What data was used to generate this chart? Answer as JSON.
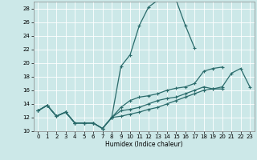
{
  "xlabel": "Humidex (Indice chaleur)",
  "xlim": [
    -0.5,
    23.5
  ],
  "ylim": [
    10,
    29
  ],
  "yticks": [
    10,
    12,
    14,
    16,
    18,
    20,
    22,
    24,
    26,
    28
  ],
  "xticks": [
    0,
    1,
    2,
    3,
    4,
    5,
    6,
    7,
    8,
    9,
    10,
    11,
    12,
    13,
    14,
    15,
    16,
    17,
    18,
    19,
    20,
    21,
    22,
    23
  ],
  "bg_color": "#cce8e8",
  "grid_color": "#ffffff",
  "line_color": "#2a6b6b",
  "line1_y": [
    13.0,
    13.8,
    12.2,
    12.8,
    11.2,
    11.2,
    11.2,
    10.4,
    12.0,
    19.5,
    21.2,
    25.5,
    28.2,
    29.2,
    29.3,
    29.2,
    25.5,
    22.2,
    null,
    null,
    null,
    null,
    null,
    null
  ],
  "line2_y": [
    13.0,
    13.8,
    12.2,
    12.8,
    11.2,
    11.2,
    11.2,
    10.4,
    12.0,
    13.5,
    14.5,
    15.0,
    15.2,
    15.5,
    16.0,
    16.3,
    16.5,
    17.0,
    18.8,
    19.2,
    19.4,
    null,
    null,
    null
  ],
  "line3_y": [
    13.0,
    13.8,
    12.2,
    12.8,
    11.2,
    11.2,
    11.2,
    10.4,
    12.0,
    13.0,
    13.2,
    13.5,
    14.0,
    14.5,
    14.8,
    15.0,
    15.5,
    16.0,
    16.5,
    16.2,
    16.2,
    null,
    null,
    null
  ],
  "line4_y": [
    13.0,
    13.8,
    12.2,
    12.8,
    11.2,
    11.2,
    11.2,
    10.4,
    12.0,
    12.2,
    12.5,
    12.8,
    13.2,
    13.5,
    14.0,
    14.5,
    15.0,
    15.5,
    16.0,
    16.2,
    16.5,
    18.5,
    19.2,
    16.5
  ]
}
